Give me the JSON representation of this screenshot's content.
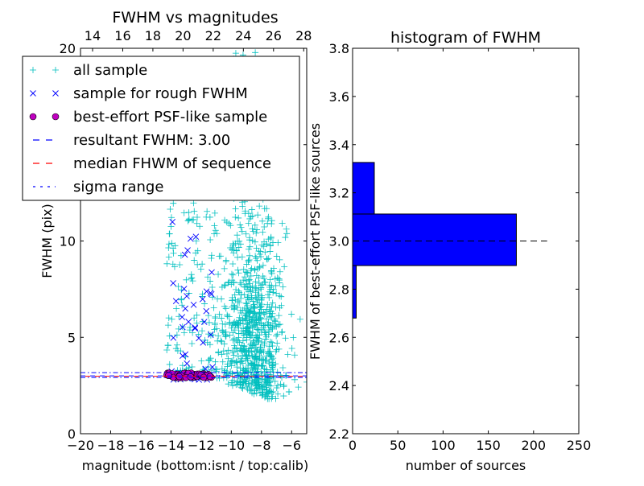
{
  "chart_data": [
    {
      "type": "scatter",
      "title": "FWHM vs magnitudes",
      "xlabel": "magnitude (bottom:isnt / top:calib)",
      "ylabel": "FWHM (pix)",
      "xlim": [
        -20,
        -5
      ],
      "ylim": [
        0,
        20
      ],
      "xticks": [
        "−20",
        "−18",
        "−16",
        "−14",
        "−12",
        "−10",
        "−8",
        "−6"
      ],
      "xtick_values": [
        -20,
        -18,
        -16,
        -14,
        -12,
        -10,
        -8,
        -6
      ],
      "yticks": [
        "0",
        "5",
        "10",
        "15",
        "20"
      ],
      "ytick_values": [
        0,
        5,
        10,
        15,
        20
      ],
      "top_axis": {
        "offset": 33.2,
        "ticks": [
          "14",
          "16",
          "18",
          "20",
          "22",
          "24",
          "26",
          "28"
        ],
        "tick_values": [
          14,
          16,
          18,
          20,
          22,
          24,
          26,
          28
        ]
      },
      "legend": {
        "placement": "upper-left",
        "entries": [
          {
            "label": "all sample",
            "marker": "+",
            "color": "#00bfbf"
          },
          {
            "label": "sample for rough FWHM",
            "marker": "x",
            "color": "#0000ff"
          },
          {
            "label": "best-effort PSF-like sample",
            "marker": "o",
            "color": "#bf00bf"
          },
          {
            "label": "resultant FWHM: 3.00",
            "marker": "--",
            "color": "#0000ff"
          },
          {
            "label": "median FHWM of sequence",
            "marker": "--",
            "color": "#ff0000"
          },
          {
            "label": "sigma range",
            "marker": "-.",
            "color": "#0000ff"
          }
        ]
      },
      "lines": {
        "resultant": 3.0,
        "median": 2.98,
        "sigma_low": 2.92,
        "sigma_high": 3.17
      },
      "series_clusters": [
        {
          "name": "all sample",
          "marker": "+",
          "color": "#00bfbf",
          "x": [
            -14.2,
            -5
          ],
          "y_center": 6,
          "y_spread": 4,
          "count": 900,
          "x_center": -8.6,
          "x_sd": 1.1
        },
        {
          "name": "all sample (bright)",
          "marker": "+",
          "color": "#00bfbf",
          "x": [
            -14.3,
            -11
          ],
          "y": [
            3,
            12
          ],
          "count": 130
        },
        {
          "name": "sample for rough FWHM",
          "marker": "x",
          "color": "#0000ff",
          "x": [
            -14,
            -11.2
          ],
          "y": [
            2.8,
            11
          ],
          "count": 45
        },
        {
          "name": "best-effort PSF-like sample",
          "marker": "o",
          "color": "#bf00bf",
          "x": [
            -14.3,
            -11.2
          ],
          "y": [
            2.9,
            3.15
          ],
          "count": 60
        }
      ]
    },
    {
      "type": "bar",
      "orientation": "horizontal",
      "title": "histogram of FWHM",
      "xlabel": "number of sources",
      "ylabel": "FWHM of best-effort PSF-like sources",
      "xlim": [
        0,
        250
      ],
      "ylim": [
        2.2,
        3.8
      ],
      "xticks": [
        "0",
        "50",
        "100",
        "150",
        "200",
        "250"
      ],
      "xtick_values": [
        0,
        50,
        100,
        150,
        200,
        250
      ],
      "yticks": [
        "2.2",
        "2.4",
        "2.6",
        "2.8",
        "3.0",
        "3.2",
        "3.4",
        "3.6",
        "3.8"
      ],
      "ytick_values": [
        2.2,
        2.4,
        2.6,
        2.8,
        3.0,
        3.2,
        3.4,
        3.6,
        3.8
      ],
      "bins": [
        {
          "low": 2.68,
          "high": 2.898,
          "count": 4
        },
        {
          "low": 2.898,
          "high": 3.112,
          "count": 181
        },
        {
          "low": 3.112,
          "high": 3.326,
          "count": 24
        }
      ],
      "bar_color": "#0000ff",
      "reference_line": {
        "y": 3.0,
        "x_extent": 215
      }
    }
  ]
}
